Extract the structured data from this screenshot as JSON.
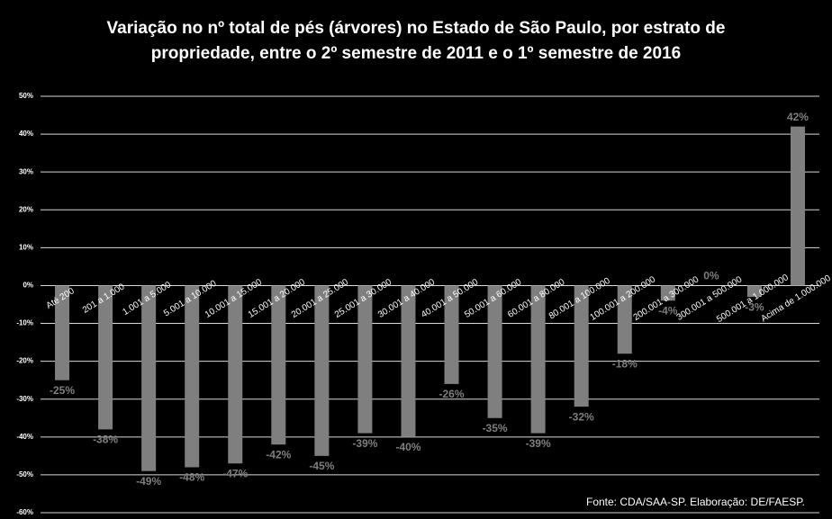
{
  "chart_data": {
    "type": "bar",
    "title": "Variação no nº total de pés (árvores) no Estado de São Paulo, por estrato de propriedade, entre o 2º semestre de 2011 e o 1º semestre de 2016",
    "note": "Fonte: CDA/SAA-SP. Elaboração: DE/FAESP.",
    "categories": [
      "Até 200",
      "201 a 1.000",
      "1.001 a 5.000",
      "5.001 a 10.000",
      "10.001 a 15.000",
      "15.001 a 20.000",
      "20.001 a 25.000",
      "25.001 a 30.000",
      "30.001 a 40.000",
      "40.001 a 50.000",
      "50.001 a 60.000",
      "60.001 a 80.000",
      "80.001 a 100.000",
      "100.001 a 200.000",
      "200.001 a 300.000",
      "300.001 a 500.000",
      "500.001 a 1.000.000",
      "Acima de 1.000.000"
    ],
    "values": [
      -25,
      -38,
      -49,
      -48,
      -47,
      -42,
      -45,
      -39,
      -40,
      -26,
      -35,
      -39,
      -32,
      -18,
      -4,
      0,
      -3,
      42
    ],
    "value_labels": [
      "-25%",
      "-38%",
      "-49%",
      "-48%",
      "-47%",
      "-42%",
      "-45%",
      "-39%",
      "-40%",
      "-26%",
      "-35%",
      "-39%",
      "-32%",
      "-18%",
      "-4%",
      "0%",
      "-3%",
      "42%"
    ],
    "color": "#7f7f7f",
    "ylim": [
      -60,
      50
    ],
    "yticks": [
      {
        "value": -60,
        "label": "-60%"
      },
      {
        "value": -50,
        "label": "-50%"
      },
      {
        "value": -40,
        "label": "-40%"
      },
      {
        "value": -30,
        "label": "-30%"
      },
      {
        "value": -20,
        "label": "-20%"
      },
      {
        "value": -10,
        "label": "-10%"
      },
      {
        "value": 0,
        "label": "0%"
      },
      {
        "value": 10,
        "label": "10%"
      },
      {
        "value": 20,
        "label": "20%"
      },
      {
        "value": 30,
        "label": "30%"
      },
      {
        "value": 40,
        "label": "40%"
      },
      {
        "value": 50,
        "label": "50%"
      }
    ],
    "grid": true
  }
}
